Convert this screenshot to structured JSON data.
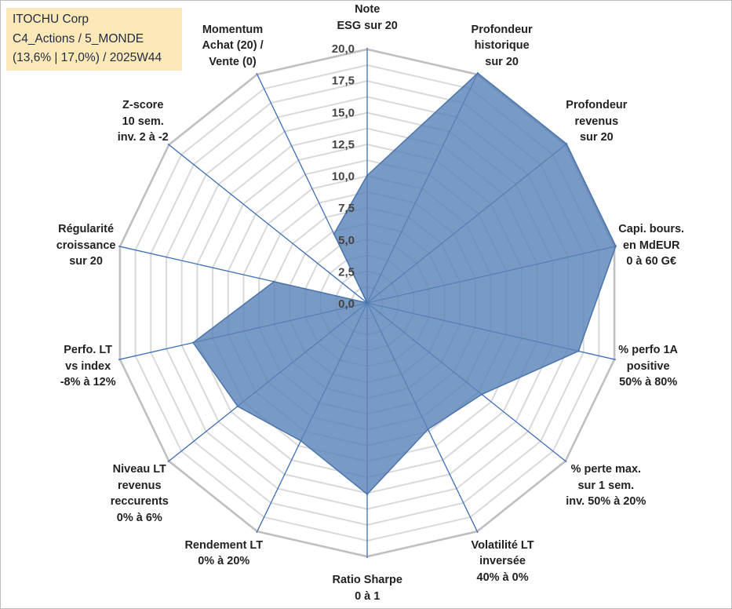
{
  "info": {
    "line1": "ITOCHU Corp",
    "line2": "C4_Actions / 5_MONDE",
    "line3": "(13,6% | 17,0%) / 2025W44"
  },
  "chart_data": {
    "type": "radar",
    "title": "",
    "rmin": 0,
    "rmax": 20,
    "ticks": [
      "0,0",
      "2,5",
      "5,0",
      "7,5",
      "10,0",
      "12,5",
      "15,0",
      "17,5",
      "20,0"
    ],
    "tick_values": [
      0,
      2.5,
      5,
      7.5,
      10,
      12.5,
      15,
      17.5,
      20
    ],
    "categories": [
      "Note\nESG sur 20",
      "Profondeur\nhistorique\nsur 20",
      "Profondeur\nrevenus\nsur 20",
      "Capi. bours.\nen MdEUR\n0 à 60 G€",
      "% perfo 1A\npositive\n50% à 80%",
      "% perte max.\nsur 1 sem.\ninv. 50% à 20%",
      "Volatilité LT\ninversée\n40% à 0%",
      "Ratio Sharpe\n0 à 1",
      "Rendement LT\n0% à 20%",
      "Niveau LT\nrevenus\nreccurents\n0% à 6%",
      "Perfo. LT\nvs index\n-8% à 12%",
      "Régularité\ncroissance\nsur 20",
      "Z-score\n10 sem.\ninv. 2 à -2",
      "Momentum\nAchat (20) /\nVente (0)"
    ],
    "series": [
      {
        "name": "ITOCHU Corp",
        "color": "#5b84b8",
        "values": [
          10.0,
          20.0,
          20.0,
          20.0,
          17.0,
          11.5,
          11.0,
          15.0,
          12.0,
          13.0,
          14.0,
          7.5,
          0.0,
          6.0
        ]
      }
    ]
  }
}
